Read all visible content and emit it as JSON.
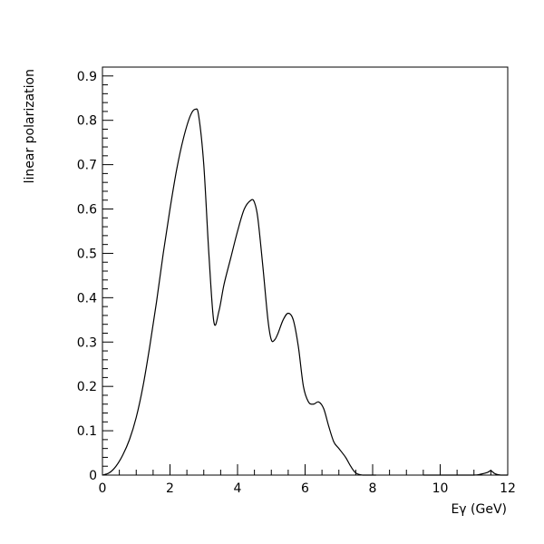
{
  "chart_data": {
    "type": "line",
    "xlabel": "Eγ (GeV)",
    "ylabel": "linear polarization",
    "xlim": [
      0,
      12
    ],
    "ylim": [
      0,
      0.92
    ],
    "x_ticks": [
      0,
      2,
      4,
      6,
      8,
      10,
      12
    ],
    "y_ticks": [
      0,
      0.1,
      0.2,
      0.3,
      0.4,
      0.5,
      0.6,
      0.7,
      0.8,
      0.9
    ],
    "grid": false,
    "legend": "none",
    "series": [
      {
        "color": "#000000",
        "x": [
          0,
          0.2,
          0.4,
          0.6,
          0.8,
          1.0,
          1.2,
          1.4,
          1.6,
          1.8,
          2.0,
          2.2,
          2.4,
          2.6,
          2.75,
          2.85,
          3.0,
          3.15,
          3.3,
          3.45,
          3.6,
          3.8,
          4.0,
          4.2,
          4.4,
          4.5,
          4.6,
          4.75,
          4.9,
          5.0,
          5.1,
          5.2,
          5.35,
          5.5,
          5.65,
          5.8,
          5.95,
          6.1,
          6.25,
          6.4,
          6.55,
          6.7,
          6.85,
          7.0,
          7.2,
          7.35,
          7.5,
          7.7,
          7.9,
          8.1
        ],
        "y": [
          0.0,
          0.005,
          0.02,
          0.045,
          0.08,
          0.13,
          0.2,
          0.29,
          0.39,
          0.5,
          0.6,
          0.69,
          0.76,
          0.81,
          0.825,
          0.81,
          0.7,
          0.5,
          0.345,
          0.37,
          0.43,
          0.49,
          0.55,
          0.6,
          0.62,
          0.615,
          0.58,
          0.47,
          0.35,
          0.305,
          0.305,
          0.32,
          0.35,
          0.365,
          0.35,
          0.29,
          0.2,
          0.165,
          0.16,
          0.165,
          0.15,
          0.11,
          0.075,
          0.06,
          0.04,
          0.02,
          0.005,
          0.0,
          0.0,
          0.0
        ]
      },
      {
        "color": "#000000",
        "x": [
          9.5,
          10.0,
          10.5,
          11.0,
          11.2,
          11.4,
          11.5,
          11.6,
          11.7,
          11.8,
          12.0
        ],
        "y": [
          0.0,
          0.0,
          0.0,
          0.0,
          0.002,
          0.006,
          0.01,
          0.004,
          0.001,
          0.0,
          0.0
        ]
      }
    ]
  }
}
